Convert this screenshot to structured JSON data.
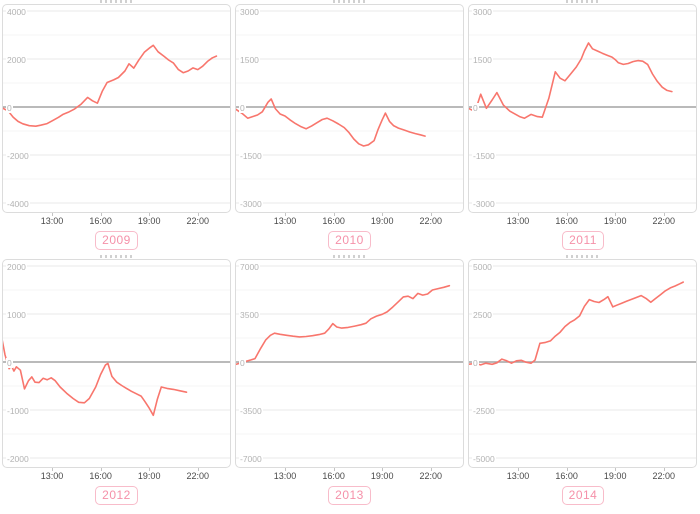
{
  "page": {
    "background": "#ffffff"
  },
  "styles": {
    "line_color": "#f8766d",
    "grid_major": "#e9e9e9",
    "grid_minor": "#f5f5f5",
    "zero_line": "#a3a3a3",
    "panel_border": "#dcdcdc",
    "y_label_color": "#b3b3b3",
    "x_label_color": "#4a4a4a",
    "badge_text_color": "#f591a9",
    "badge_border_color": "#f8bcca"
  },
  "x_ticks": [
    {
      "t": 13,
      "label": "13:00"
    },
    {
      "t": 16,
      "label": "16:00"
    },
    {
      "t": 19,
      "label": "19:00"
    },
    {
      "t": 22,
      "label": "22:00"
    }
  ],
  "chart_data": [
    {
      "type": "line",
      "label": "2009",
      "xlabel": "",
      "ylabel": "",
      "ymax": 4000,
      "ylim": [
        -4000,
        4000
      ],
      "y_ticks": [
        "4000",
        "2000",
        "0",
        "-2000",
        "-4000"
      ],
      "points": [
        [
          9.9,
          -30
        ],
        [
          10.3,
          -170
        ],
        [
          10.6,
          -420
        ],
        [
          10.9,
          -600
        ],
        [
          11.2,
          -700
        ],
        [
          11.6,
          -780
        ],
        [
          12.0,
          -800
        ],
        [
          12.3,
          -760
        ],
        [
          12.7,
          -690
        ],
        [
          13.0,
          -580
        ],
        [
          13.4,
          -430
        ],
        [
          13.7,
          -300
        ],
        [
          14.0,
          -220
        ],
        [
          14.4,
          -80
        ],
        [
          14.8,
          120
        ],
        [
          15.2,
          400
        ],
        [
          15.5,
          260
        ],
        [
          15.8,
          160
        ],
        [
          16.1,
          650
        ],
        [
          16.4,
          1020
        ],
        [
          16.8,
          1130
        ],
        [
          17.1,
          1230
        ],
        [
          17.5,
          1500
        ],
        [
          17.75,
          1800
        ],
        [
          18.05,
          1620
        ],
        [
          18.35,
          1950
        ],
        [
          18.7,
          2280
        ],
        [
          19.0,
          2450
        ],
        [
          19.25,
          2570
        ],
        [
          19.55,
          2300
        ],
        [
          19.9,
          2120
        ],
        [
          20.2,
          1960
        ],
        [
          20.5,
          1830
        ],
        [
          20.8,
          1560
        ],
        [
          21.1,
          1430
        ],
        [
          21.4,
          1500
        ],
        [
          21.7,
          1630
        ],
        [
          22.0,
          1560
        ],
        [
          22.3,
          1700
        ],
        [
          22.6,
          1900
        ],
        [
          22.9,
          2050
        ],
        [
          23.15,
          2120
        ]
      ]
    },
    {
      "type": "line",
      "label": "2010",
      "xlabel": "",
      "ylabel": "",
      "ymax": 3000,
      "ylim": [
        -3000,
        3000
      ],
      "y_ticks": [
        "3000",
        "1500",
        "0",
        "-1500",
        "-3000"
      ],
      "points": [
        [
          9.9,
          -50
        ],
        [
          10.35,
          -200
        ],
        [
          10.7,
          -350
        ],
        [
          11.0,
          -300
        ],
        [
          11.3,
          -250
        ],
        [
          11.6,
          -150
        ],
        [
          11.95,
          150
        ],
        [
          12.15,
          250
        ],
        [
          12.4,
          -50
        ],
        [
          12.7,
          -220
        ],
        [
          13.0,
          -280
        ],
        [
          13.3,
          -400
        ],
        [
          13.65,
          -520
        ],
        [
          14.0,
          -620
        ],
        [
          14.3,
          -680
        ],
        [
          14.65,
          -590
        ],
        [
          15.0,
          -480
        ],
        [
          15.3,
          -390
        ],
        [
          15.6,
          -350
        ],
        [
          15.95,
          -430
        ],
        [
          16.3,
          -530
        ],
        [
          16.65,
          -640
        ],
        [
          16.95,
          -800
        ],
        [
          17.25,
          -1000
        ],
        [
          17.55,
          -1150
        ],
        [
          17.85,
          -1220
        ],
        [
          18.15,
          -1180
        ],
        [
          18.5,
          -1050
        ],
        [
          18.75,
          -700
        ],
        [
          19.0,
          -400
        ],
        [
          19.2,
          -190
        ],
        [
          19.45,
          -450
        ],
        [
          19.7,
          -580
        ],
        [
          20.0,
          -660
        ],
        [
          20.35,
          -720
        ],
        [
          20.7,
          -780
        ],
        [
          21.05,
          -830
        ],
        [
          21.35,
          -870
        ],
        [
          21.65,
          -910
        ]
      ]
    },
    {
      "type": "line",
      "label": "2011",
      "xlabel": "",
      "ylabel": "",
      "ymax": 3000,
      "ylim": [
        -3000,
        3000
      ],
      "y_ticks": [
        "3000",
        "1500",
        "0",
        "-1500",
        "-3000"
      ],
      "points": [
        [
          9.9,
          -30
        ],
        [
          10.35,
          -140
        ],
        [
          10.7,
          400
        ],
        [
          11.05,
          -40
        ],
        [
          11.4,
          220
        ],
        [
          11.7,
          450
        ],
        [
          12.1,
          60
        ],
        [
          12.5,
          -130
        ],
        [
          13.1,
          -300
        ],
        [
          13.4,
          -350
        ],
        [
          13.8,
          -230
        ],
        [
          14.2,
          -300
        ],
        [
          14.5,
          -320
        ],
        [
          14.9,
          270
        ],
        [
          15.3,
          1100
        ],
        [
          15.6,
          900
        ],
        [
          15.9,
          820
        ],
        [
          16.2,
          1000
        ],
        [
          16.6,
          1250
        ],
        [
          16.9,
          1500
        ],
        [
          17.1,
          1750
        ],
        [
          17.35,
          2000
        ],
        [
          17.6,
          1820
        ],
        [
          17.9,
          1750
        ],
        [
          18.2,
          1680
        ],
        [
          18.5,
          1620
        ],
        [
          18.8,
          1560
        ],
        [
          19.0,
          1480
        ],
        [
          19.2,
          1380
        ],
        [
          19.5,
          1330
        ],
        [
          19.8,
          1360
        ],
        [
          20.1,
          1420
        ],
        [
          20.4,
          1450
        ],
        [
          20.7,
          1430
        ],
        [
          21.0,
          1330
        ],
        [
          21.3,
          1030
        ],
        [
          21.6,
          800
        ],
        [
          21.9,
          620
        ],
        [
          22.2,
          520
        ],
        [
          22.5,
          480
        ]
      ]
    },
    {
      "type": "line",
      "label": "2012",
      "xlabel": "",
      "ylabel": "",
      "ymax": 2000,
      "ylim": [
        -2000,
        2000
      ],
      "y_ticks": [
        "2000",
        "1000",
        "0",
        "-1000",
        "-2000"
      ],
      "points": [
        [
          9.9,
          500
        ],
        [
          10.1,
          150
        ],
        [
          10.35,
          -140
        ],
        [
          10.5,
          -80
        ],
        [
          10.65,
          -190
        ],
        [
          10.8,
          -100
        ],
        [
          11.05,
          -170
        ],
        [
          11.3,
          -560
        ],
        [
          11.55,
          -390
        ],
        [
          11.75,
          -310
        ],
        [
          11.95,
          -420
        ],
        [
          12.2,
          -430
        ],
        [
          12.45,
          -340
        ],
        [
          12.7,
          -370
        ],
        [
          12.95,
          -330
        ],
        [
          13.2,
          -390
        ],
        [
          13.5,
          -520
        ],
        [
          13.9,
          -650
        ],
        [
          14.3,
          -760
        ],
        [
          14.65,
          -840
        ],
        [
          15.0,
          -850
        ],
        [
          15.3,
          -760
        ],
        [
          15.7,
          -520
        ],
        [
          16.0,
          -260
        ],
        [
          16.3,
          -60
        ],
        [
          16.45,
          -30
        ],
        [
          16.7,
          -300
        ],
        [
          17.0,
          -420
        ],
        [
          17.3,
          -490
        ],
        [
          17.6,
          -550
        ],
        [
          17.9,
          -610
        ],
        [
          18.2,
          -660
        ],
        [
          18.5,
          -710
        ],
        [
          18.75,
          -830
        ],
        [
          19.0,
          -960
        ],
        [
          19.25,
          -1110
        ],
        [
          19.5,
          -780
        ],
        [
          19.75,
          -520
        ],
        [
          20.1,
          -550
        ],
        [
          20.5,
          -570
        ],
        [
          20.9,
          -600
        ],
        [
          21.3,
          -630
        ]
      ]
    },
    {
      "type": "line",
      "label": "2013",
      "xlabel": "",
      "ylabel": "",
      "ymax": 7000,
      "ylim": [
        -7000,
        7000
      ],
      "y_ticks": [
        "7000",
        "3500",
        "0",
        "-3500",
        "-7000"
      ],
      "points": [
        [
          9.9,
          -200
        ],
        [
          10.3,
          -60
        ],
        [
          10.6,
          50
        ],
        [
          10.9,
          150
        ],
        [
          11.15,
          250
        ],
        [
          11.5,
          1000
        ],
        [
          11.8,
          1600
        ],
        [
          12.1,
          1950
        ],
        [
          12.35,
          2100
        ],
        [
          12.7,
          2020
        ],
        [
          13.1,
          1950
        ],
        [
          13.5,
          1880
        ],
        [
          13.9,
          1830
        ],
        [
          14.3,
          1860
        ],
        [
          14.7,
          1920
        ],
        [
          15.1,
          2000
        ],
        [
          15.45,
          2100
        ],
        [
          15.7,
          2400
        ],
        [
          15.95,
          2800
        ],
        [
          16.2,
          2550
        ],
        [
          16.5,
          2470
        ],
        [
          16.9,
          2520
        ],
        [
          17.3,
          2620
        ],
        [
          17.7,
          2720
        ],
        [
          18.0,
          2830
        ],
        [
          18.3,
          3150
        ],
        [
          18.65,
          3350
        ],
        [
          19.0,
          3480
        ],
        [
          19.3,
          3650
        ],
        [
          19.65,
          4000
        ],
        [
          20.0,
          4400
        ],
        [
          20.3,
          4750
        ],
        [
          20.6,
          4800
        ],
        [
          20.9,
          4620
        ],
        [
          21.2,
          5000
        ],
        [
          21.5,
          4880
        ],
        [
          21.8,
          4960
        ],
        [
          22.1,
          5250
        ],
        [
          22.45,
          5350
        ],
        [
          22.8,
          5450
        ],
        [
          23.15,
          5560
        ]
      ]
    },
    {
      "type": "line",
      "label": "2014",
      "xlabel": "",
      "ylabel": "",
      "ymax": 5000,
      "ylim": [
        -5000,
        5000
      ],
      "y_ticks": [
        "5000",
        "2500",
        "0",
        "-2500",
        "-5000"
      ],
      "points": [
        [
          9.9,
          -120
        ],
        [
          10.4,
          -80
        ],
        [
          10.7,
          -150
        ],
        [
          11.0,
          -60
        ],
        [
          11.4,
          -120
        ],
        [
          11.7,
          -40
        ],
        [
          12.0,
          150
        ],
        [
          12.3,
          60
        ],
        [
          12.6,
          -60
        ],
        [
          12.9,
          60
        ],
        [
          13.2,
          90
        ],
        [
          13.5,
          -10
        ],
        [
          13.8,
          -60
        ],
        [
          14.05,
          100
        ],
        [
          14.35,
          975
        ],
        [
          14.7,
          1020
        ],
        [
          15.0,
          1100
        ],
        [
          15.3,
          1350
        ],
        [
          15.6,
          1550
        ],
        [
          15.9,
          1850
        ],
        [
          16.2,
          2050
        ],
        [
          16.5,
          2200
        ],
        [
          16.8,
          2400
        ],
        [
          17.1,
          2900
        ],
        [
          17.4,
          3250
        ],
        [
          17.7,
          3150
        ],
        [
          18.0,
          3100
        ],
        [
          18.3,
          3250
        ],
        [
          18.55,
          3400
        ],
        [
          18.85,
          2870
        ],
        [
          19.1,
          2960
        ],
        [
          19.4,
          3060
        ],
        [
          19.7,
          3160
        ],
        [
          20.0,
          3260
        ],
        [
          20.3,
          3360
        ],
        [
          20.6,
          3460
        ],
        [
          20.9,
          3310
        ],
        [
          21.2,
          3110
        ],
        [
          21.5,
          3310
        ],
        [
          21.8,
          3510
        ],
        [
          22.1,
          3710
        ],
        [
          22.4,
          3860
        ],
        [
          22.7,
          3960
        ],
        [
          23.0,
          4080
        ],
        [
          23.2,
          4160
        ]
      ]
    }
  ]
}
